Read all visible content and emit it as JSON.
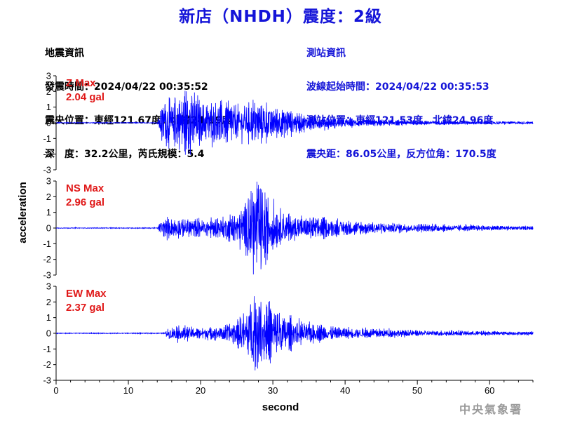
{
  "title": "新店（NHDH）震度：2級",
  "quake_info": {
    "heading": "地震資訊",
    "origin_time": "發震時間：2024/04/22 00:35:52",
    "epicenter": "震央位置：東經121.67度，北緯24.19度",
    "depth_magnitude": "深　度：32.2公里，芮氏規模：5.4"
  },
  "station_info": {
    "heading": "測站資訊",
    "wave_start": "波線起始時間：2024/04/22 00:35:53",
    "station_location": "測站位置：東經121.53度，北緯24.96度",
    "distance_azimuth": "震央距：86.05公里，反方位角：170.5度"
  },
  "credit": "中央氣象署",
  "colors": {
    "title": "#1414d8",
    "trace": "#0000ff",
    "max_label": "#e01818",
    "credit": "#9a9a9a"
  },
  "chart_data": {
    "type": "line",
    "xlabel": "second",
    "ylabel": "acceleration",
    "xlim": [
      0,
      66
    ],
    "x_ticks": [
      "0",
      "10",
      "20",
      "30",
      "40",
      "50",
      "60"
    ],
    "y_ticks": [
      "3",
      "2",
      "1",
      "0",
      "-1",
      "-2",
      "-3"
    ],
    "ylim": [
      -3,
      3
    ],
    "grid": false,
    "panels": [
      {
        "component": "Z",
        "max_label": "Z Max",
        "max_value": "2.04 gal",
        "peak_gal": 2.04,
        "envelope": [
          [
            0,
            0.02
          ],
          [
            14,
            0.02
          ],
          [
            14.6,
            0.9
          ],
          [
            15.2,
            1.5
          ],
          [
            16,
            1.1
          ],
          [
            17,
            1.3
          ],
          [
            18.6,
            1.9
          ],
          [
            20,
            1.0
          ],
          [
            22,
            1.1
          ],
          [
            24,
            1.2
          ],
          [
            25,
            0.9
          ],
          [
            27,
            0.95
          ],
          [
            28.5,
            1.05
          ],
          [
            30,
            0.85
          ],
          [
            32,
            0.7
          ],
          [
            34,
            0.45
          ],
          [
            38,
            0.28
          ],
          [
            43,
            0.18
          ],
          [
            50,
            0.12
          ],
          [
            58,
            0.09
          ],
          [
            66,
            0.07
          ]
        ],
        "peaks": [
          [
            18.6,
            -2.04
          ],
          [
            16.5,
            1.55
          ],
          [
            15.1,
            1.2
          ],
          [
            18.2,
            1.4
          ]
        ]
      },
      {
        "component": "NS",
        "max_label": "NS Max",
        "max_value": "2.96 gal",
        "peak_gal": 2.96,
        "envelope": [
          [
            0,
            0.02
          ],
          [
            14,
            0.02
          ],
          [
            14.6,
            0.45
          ],
          [
            17,
            0.5
          ],
          [
            20,
            0.45
          ],
          [
            23,
            0.55
          ],
          [
            25,
            0.9
          ],
          [
            26.5,
            1.6
          ],
          [
            27.6,
            2.3
          ],
          [
            28.5,
            2.1
          ],
          [
            29.5,
            1.3
          ],
          [
            31,
            0.9
          ],
          [
            33,
            0.6
          ],
          [
            36,
            0.55
          ],
          [
            39,
            0.42
          ],
          [
            42,
            0.35
          ],
          [
            47,
            0.25
          ],
          [
            55,
            0.17
          ],
          [
            66,
            0.1
          ]
        ],
        "peaks": [
          [
            27.8,
            2.96
          ],
          [
            29.0,
            -2.35
          ],
          [
            27.2,
            2.25
          ],
          [
            28.4,
            -2.1
          ],
          [
            26.6,
            1.9
          ]
        ]
      },
      {
        "component": "EW",
        "max_label": "EW Max",
        "max_value": "2.37 gal",
        "peak_gal": 2.37,
        "envelope": [
          [
            0,
            0.02
          ],
          [
            15,
            0.02
          ],
          [
            15.6,
            0.35
          ],
          [
            17,
            0.4
          ],
          [
            20,
            0.3
          ],
          [
            23,
            0.4
          ],
          [
            25,
            0.6
          ],
          [
            26.5,
            1.3
          ],
          [
            27.5,
            1.9
          ],
          [
            28.5,
            1.7
          ],
          [
            30,
            1.4
          ],
          [
            31.5,
            1.0
          ],
          [
            33,
            0.65
          ],
          [
            36,
            0.45
          ],
          [
            40,
            0.3
          ],
          [
            45,
            0.22
          ],
          [
            52,
            0.14
          ],
          [
            58,
            0.12
          ],
          [
            66,
            0.09
          ]
        ],
        "peaks": [
          [
            27.4,
            2.37
          ],
          [
            27.9,
            -2.25
          ],
          [
            26.9,
            1.85
          ],
          [
            29.2,
            1.7
          ],
          [
            30.7,
            1.2
          ]
        ]
      }
    ]
  }
}
